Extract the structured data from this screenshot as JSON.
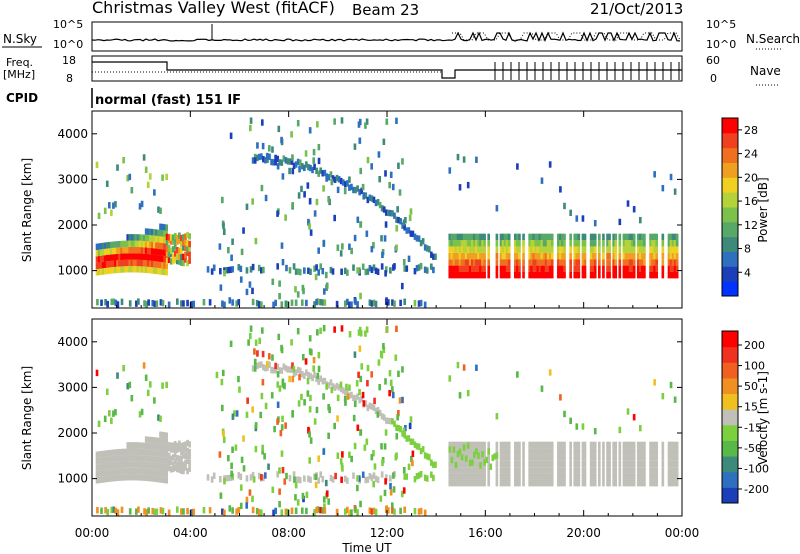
{
  "header": {
    "station": "Christmas Valley West (fitACF)",
    "beam": "Beam 23",
    "date": "21/Oct/2013"
  },
  "noise_panel": {
    "left_label": "N.Sky",
    "right_label": "N.Search",
    "y_ticks": [
      "10^5",
      "10^0"
    ]
  },
  "freq_panel": {
    "left_label_line1": "Freq.",
    "left_label_line2": "[MHz]",
    "left_ticks": [
      "18",
      "8"
    ],
    "right_label": "Nave",
    "right_ticks": [
      "60",
      "0"
    ]
  },
  "cpid": {
    "label": "CPID",
    "value": "normal (fast) 151 IF"
  },
  "chart_data": [
    {
      "type": "heatmap",
      "title": "",
      "ylabel": "Slant Range [km]",
      "xlabel": "",
      "ylim": [
        180,
        4500
      ],
      "y_ticks": [
        "1000",
        "2000",
        "3000",
        "4000"
      ],
      "colorbar": {
        "label": "Power [dB]",
        "range": [
          0,
          30
        ],
        "ticks": [
          "4",
          "8",
          "12",
          "16",
          "20",
          "24",
          "28"
        ],
        "colors": [
          "#0033ff",
          "#1a3fb8",
          "#2f6fbf",
          "#3e8a7a",
          "#58a868",
          "#7cc24a",
          "#b4d23a",
          "#f0d020",
          "#f0a020",
          "#f07020",
          "#f04020",
          "#ff0000"
        ]
      },
      "features": [
        {
          "name": "ground scatter band",
          "t_start": 0.2,
          "t_end": 3.0,
          "range_low": 1000,
          "range_high": 2000
        },
        {
          "name": "ionospheric arc",
          "t_start": 6.5,
          "t_end": 14.0,
          "range_low": 1100,
          "range_high": 3500
        },
        {
          "name": "low range band",
          "t_start": 4.5,
          "t_end": 14.0,
          "range_low": 900,
          "range_high": 1200
        },
        {
          "name": "post-gap band",
          "t_start": 14.5,
          "t_end": 23.8,
          "range_low": 900,
          "range_high": 1800
        }
      ]
    },
    {
      "type": "heatmap",
      "title": "",
      "ylabel": "Slant Range [km]",
      "xlabel": "Time UT",
      "ylim": [
        180,
        4500
      ],
      "y_ticks": [
        "1000",
        "2000",
        "3000",
        "4000"
      ],
      "x_ticks": [
        "00:00",
        "04:00",
        "08:00",
        "12:00",
        "16:00",
        "20:00",
        "00:00"
      ],
      "colorbar": {
        "label": "Velocity [m s-1]",
        "range": [
          -250,
          250
        ],
        "ticks": [
          "200",
          "100",
          "50",
          "15",
          "-15",
          "-50",
          "-100",
          "-200"
        ],
        "colors": [
          "#1a3fb8",
          "#2f6fbf",
          "#3e8a7a",
          "#58b848",
          "#7cd040",
          "#c0c0b8",
          "#f0c020",
          "#f09020",
          "#f06020",
          "#f03020",
          "#ff0000"
        ]
      }
    }
  ]
}
